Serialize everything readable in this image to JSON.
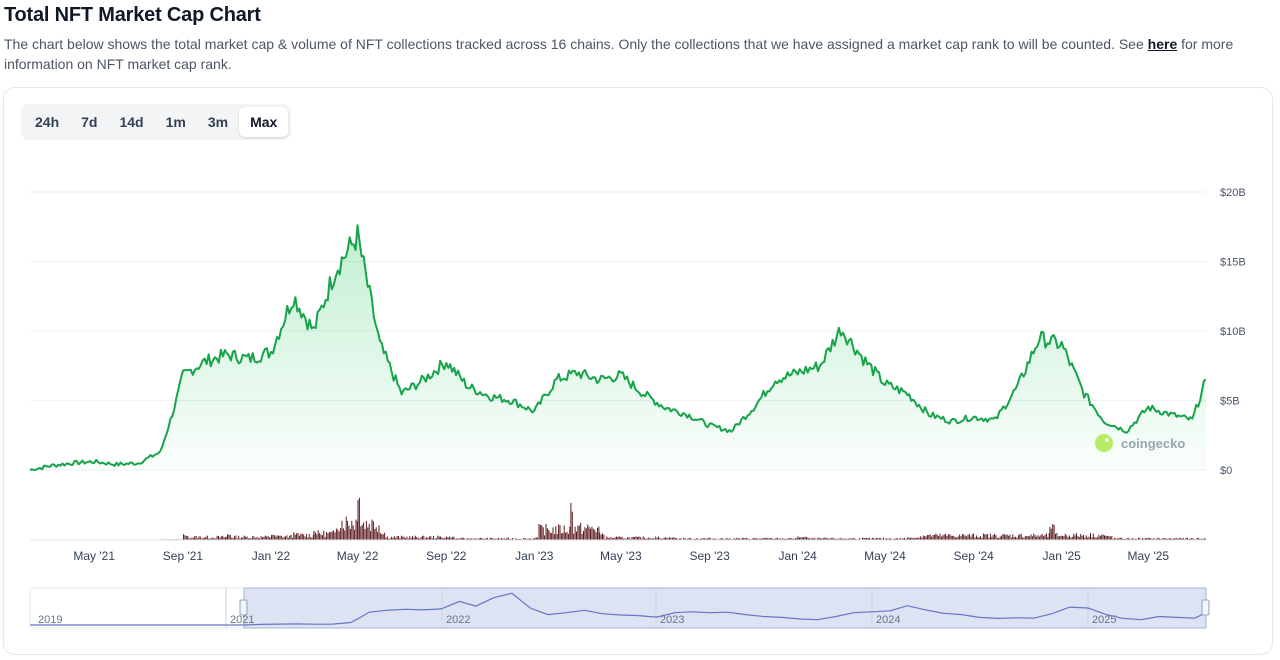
{
  "header": {
    "title": "Total NFT Market Cap Chart",
    "description": "The chart below shows the total market cap & volume of NFT collections tracked across 16 chains. Only the collections that we have assigned a market cap rank to will be counted. See",
    "link_label": "here",
    "description_tail": "for more information on NFT market cap rank."
  },
  "range_tabs": [
    {
      "label": "24h",
      "active": false
    },
    {
      "label": "7d",
      "active": false
    },
    {
      "label": "14d",
      "active": false
    },
    {
      "label": "1m",
      "active": false
    },
    {
      "label": "3m",
      "active": false
    },
    {
      "label": "Max",
      "active": true
    }
  ],
  "watermark": "coingecko",
  "colors": {
    "line": "#16a34a",
    "area": "#22c55e",
    "volume": "#5b1a1f",
    "navigator_line": "#6675c4",
    "navigator_fill": "#dde3f3"
  },
  "chart_data": {
    "type": "area",
    "title": "",
    "x_unit": "date",
    "y_unit": "USD billions",
    "ylim": [
      0,
      20
    ],
    "yticks": [
      "$0",
      "$5B",
      "$10B",
      "$15B",
      "$20B"
    ],
    "ytick_values": [
      0,
      5,
      10,
      15,
      20
    ],
    "xticks": [
      "May '21",
      "Sep '21",
      "Jan '22",
      "May '22",
      "Sep '22",
      "Jan '23",
      "May '23",
      "Sep '23",
      "Jan '24",
      "May '24",
      "Sep '24",
      "Jan '25",
      "May '25"
    ],
    "xtick_dates": [
      "2021-05-01",
      "2021-09-01",
      "2022-01-01",
      "2022-05-01",
      "2022-09-01",
      "2023-01-01",
      "2023-05-01",
      "2023-09-01",
      "2024-01-01",
      "2024-05-01",
      "2024-09-01",
      "2025-01-01",
      "2025-05-01"
    ],
    "x_range": [
      "2021-02-01",
      "2025-07-20"
    ],
    "grid": true,
    "legend": "none",
    "series": [
      {
        "name": "Market Cap",
        "points": [
          [
            "2021-02-01",
            0.0
          ],
          [
            "2021-03-01",
            0.3
          ],
          [
            "2021-04-01",
            0.5
          ],
          [
            "2021-05-01",
            0.6
          ],
          [
            "2021-06-01",
            0.4
          ],
          [
            "2021-07-01",
            0.5
          ],
          [
            "2021-08-01",
            1.3
          ],
          [
            "2021-08-20",
            4.5
          ],
          [
            "2021-09-01",
            6.8
          ],
          [
            "2021-10-01",
            7.8
          ],
          [
            "2021-11-01",
            8.3
          ],
          [
            "2021-12-01",
            8.0
          ],
          [
            "2022-01-01",
            8.5
          ],
          [
            "2022-02-01",
            12.5
          ],
          [
            "2022-03-01",
            10.0
          ],
          [
            "2022-04-01",
            14.5
          ],
          [
            "2022-05-01",
            16.8
          ],
          [
            "2022-06-01",
            9.0
          ],
          [
            "2022-07-01",
            5.5
          ],
          [
            "2022-08-01",
            6.5
          ],
          [
            "2022-09-01",
            7.8
          ],
          [
            "2022-10-01",
            6.0
          ],
          [
            "2022-11-01",
            5.3
          ],
          [
            "2022-12-01",
            5.0
          ],
          [
            "2023-01-01",
            4.2
          ],
          [
            "2023-02-01",
            6.5
          ],
          [
            "2023-03-01",
            7.0
          ],
          [
            "2023-04-01",
            6.5
          ],
          [
            "2023-05-01",
            6.8
          ],
          [
            "2023-06-01",
            5.5
          ],
          [
            "2023-07-01",
            4.5
          ],
          [
            "2023-08-01",
            4.0
          ],
          [
            "2023-09-01",
            3.2
          ],
          [
            "2023-10-01",
            2.8
          ],
          [
            "2023-11-01",
            4.5
          ],
          [
            "2023-12-01",
            6.5
          ],
          [
            "2024-01-01",
            7.0
          ],
          [
            "2024-02-01",
            7.5
          ],
          [
            "2024-03-01",
            10.2
          ],
          [
            "2024-04-01",
            8.0
          ],
          [
            "2024-05-01",
            6.2
          ],
          [
            "2024-06-01",
            5.5
          ],
          [
            "2024-07-01",
            4.0
          ],
          [
            "2024-08-01",
            3.5
          ],
          [
            "2024-09-01",
            3.8
          ],
          [
            "2024-10-01",
            3.6
          ],
          [
            "2024-11-01",
            6.0
          ],
          [
            "2024-12-01",
            9.5
          ],
          [
            "2025-01-01",
            9.0
          ],
          [
            "2025-02-01",
            5.5
          ],
          [
            "2025-03-01",
            3.5
          ],
          [
            "2025-04-01",
            2.8
          ],
          [
            "2025-05-01",
            4.5
          ],
          [
            "2025-06-01",
            4.0
          ],
          [
            "2025-07-01",
            3.6
          ],
          [
            "2025-07-20",
            6.5
          ]
        ]
      },
      {
        "name": "Volume",
        "points": [
          [
            "2021-08-01",
            0.05
          ],
          [
            "2021-09-01",
            0.4
          ],
          [
            "2021-11-01",
            0.45
          ],
          [
            "2022-01-01",
            0.45
          ],
          [
            "2022-02-01",
            0.6
          ],
          [
            "2022-03-01",
            0.8
          ],
          [
            "2022-04-01",
            1.1
          ],
          [
            "2022-05-01",
            4.3
          ],
          [
            "2022-06-01",
            0.6
          ],
          [
            "2022-09-01",
            0.25
          ],
          [
            "2023-01-01",
            0.2
          ],
          [
            "2023-02-20",
            2.9
          ],
          [
            "2023-04-01",
            0.5
          ],
          [
            "2023-07-01",
            0.2
          ],
          [
            "2024-01-01",
            0.25
          ],
          [
            "2024-06-01",
            0.2
          ],
          [
            "2024-12-15",
            1.1
          ],
          [
            "2025-03-01",
            0.3
          ],
          [
            "2025-07-20",
            0.15
          ]
        ]
      }
    ],
    "navigator": {
      "tick_labels": [
        "2019",
        "2021",
        "2022",
        "2023",
        "2024",
        "2025"
      ]
    }
  }
}
